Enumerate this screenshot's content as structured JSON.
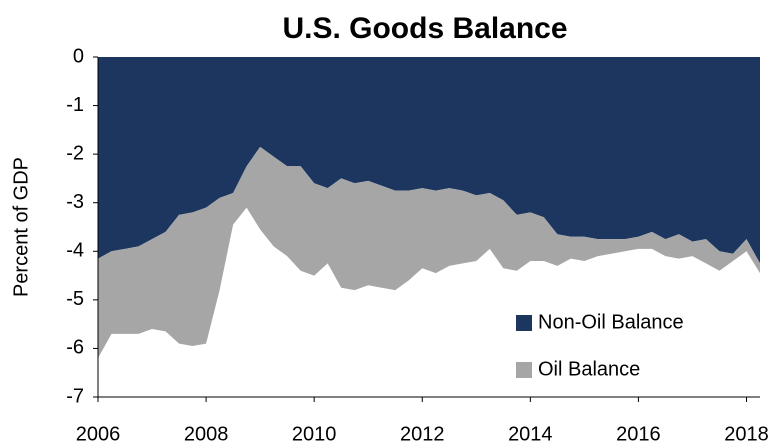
{
  "chart_data": {
    "type": "stacked_area",
    "title": "U.S. Goods Balance",
    "y_label": "Percent of GDP",
    "x": [
      2006,
      2006.25,
      2006.5,
      2006.75,
      2007,
      2007.25,
      2007.5,
      2007.75,
      2008,
      2008.25,
      2008.5,
      2008.75,
      2009,
      2009.25,
      2009.5,
      2009.75,
      2010,
      2010.25,
      2010.5,
      2010.75,
      2011,
      2011.25,
      2011.5,
      2011.75,
      2012,
      2012.25,
      2012.5,
      2012.75,
      2013,
      2013.25,
      2013.5,
      2013.75,
      2014,
      2014.25,
      2014.5,
      2014.75,
      2015,
      2015.25,
      2015.5,
      2015.75,
      2016,
      2016.25,
      2016.5,
      2016.75,
      2017,
      2017.25,
      2017.5,
      2017.75,
      2018,
      2018.25
    ],
    "series": [
      {
        "name": "Non-Oil Balance",
        "color": "#1c3660",
        "values": [
          -4.15,
          -4.0,
          -3.95,
          -3.9,
          -3.75,
          -3.6,
          -3.25,
          -3.2,
          -3.1,
          -2.9,
          -2.8,
          -2.25,
          -1.85,
          -2.05,
          -2.25,
          -2.25,
          -2.6,
          -2.7,
          -2.5,
          -2.6,
          -2.55,
          -2.65,
          -2.75,
          -2.75,
          -2.7,
          -2.75,
          -2.7,
          -2.75,
          -2.85,
          -2.8,
          -2.95,
          -3.25,
          -3.2,
          -3.3,
          -3.65,
          -3.7,
          -3.7,
          -3.75,
          -3.75,
          -3.75,
          -3.7,
          -3.6,
          -3.75,
          -3.65,
          -3.8,
          -3.75,
          -4.0,
          -4.05,
          -3.75,
          -4.25
        ]
      },
      {
        "name": "Oil Balance",
        "color": "#a6a6a6",
        "values": [
          -2.05,
          -1.7,
          -1.75,
          -1.8,
          -1.85,
          -2.05,
          -2.65,
          -2.75,
          -2.8,
          -1.9,
          -0.65,
          -0.85,
          -1.7,
          -1.85,
          -1.85,
          -2.15,
          -1.9,
          -1.55,
          -2.25,
          -2.2,
          -2.15,
          -2.1,
          -2.05,
          -1.85,
          -1.65,
          -1.7,
          -1.6,
          -1.5,
          -1.35,
          -1.15,
          -1.4,
          -1.15,
          -1.0,
          -0.9,
          -0.65,
          -0.45,
          -0.5,
          -0.35,
          -0.3,
          -0.25,
          -0.25,
          -0.35,
          -0.35,
          -0.5,
          -0.3,
          -0.5,
          -0.4,
          -0.15,
          -0.25,
          -0.2
        ]
      }
    ],
    "xlim": [
      2006,
      2018.25
    ],
    "xticks": [
      2006,
      2008,
      2010,
      2012,
      2014,
      2016,
      2018
    ],
    "ylim": [
      -7,
      0
    ],
    "yticks": [
      0,
      -1,
      -2,
      -3,
      -4,
      -5,
      -6,
      -7
    ],
    "legend": "lower right"
  }
}
